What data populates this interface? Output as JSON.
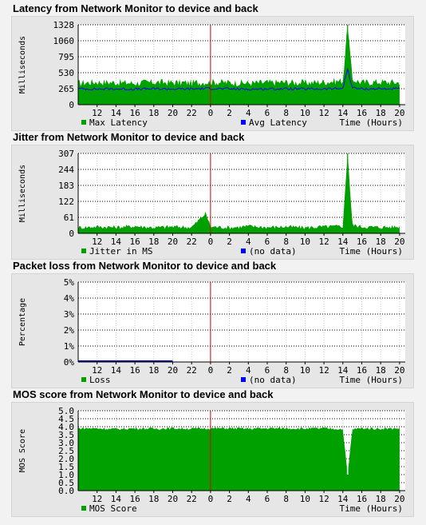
{
  "charts": [
    {
      "title": "Latency from Network Monitor to device and back",
      "ylabel": "Milliseconds",
      "xlabel": "Time (Hours)",
      "legend": [
        {
          "label": "Max Latency",
          "color": "#00a000"
        },
        {
          "label": "Avg Latency",
          "color": "#0000ff"
        }
      ]
    },
    {
      "title": "Jitter from Network Monitor to device and back",
      "ylabel": "Milliseconds",
      "xlabel": "Time (Hours)",
      "legend": [
        {
          "label": "Jitter in MS",
          "color": "#00a000"
        },
        {
          "label": "(no data)",
          "color": "#0000ff"
        }
      ]
    },
    {
      "title": "Packet loss from Network Monitor to device and back",
      "ylabel": "Percentage",
      "xlabel": "Time (Hours)",
      "legend": [
        {
          "label": "Loss",
          "color": "#00a000"
        },
        {
          "label": "(no data)",
          "color": "#0000ff"
        }
      ]
    },
    {
      "title": "MOS score from Network Monitor to device and back",
      "ylabel": "MOS Score",
      "xlabel": "Time (Hours)",
      "legend": [
        {
          "label": "MOS Score",
          "color": "#00a000"
        }
      ]
    }
  ],
  "chart_data": [
    {
      "type": "area",
      "title": "Latency from Network Monitor to device and back",
      "ylabel": "Milliseconds",
      "xlabel": "Time (Hours)",
      "ylim": [
        0,
        1328
      ],
      "yticks": [
        "1328",
        "1060",
        "795",
        "530",
        "265",
        "0"
      ],
      "xticks": [
        "12",
        "14",
        "16",
        "18",
        "20",
        "22",
        "0",
        "2",
        "4",
        "6",
        "8",
        "10",
        "12",
        "14",
        "16",
        "18",
        "20"
      ],
      "midnight_marker": "0",
      "series": [
        {
          "name": "Max Latency",
          "color": "#00a000",
          "hours": [
            "10",
            "12",
            "14",
            "16",
            "18",
            "20",
            "22",
            "0",
            "2",
            "4",
            "6",
            "8",
            "10",
            "12",
            "14",
            "14.5",
            "15",
            "16",
            "18",
            "20"
          ],
          "values": [
            360,
            380,
            370,
            360,
            375,
            370,
            365,
            380,
            370,
            360,
            370,
            375,
            365,
            380,
            400,
            1328,
            420,
            370,
            380,
            370
          ]
        },
        {
          "name": "Avg Latency",
          "color": "#0000ff",
          "hours": [
            "10",
            "12",
            "14",
            "16",
            "18",
            "20",
            "22",
            "0",
            "2",
            "4",
            "6",
            "8",
            "10",
            "12",
            "14",
            "14.5",
            "15",
            "16",
            "18",
            "20"
          ],
          "values": [
            265,
            260,
            262,
            258,
            265,
            260,
            262,
            270,
            262,
            258,
            262,
            265,
            260,
            262,
            270,
            600,
            280,
            262,
            265,
            262
          ]
        }
      ]
    },
    {
      "type": "area",
      "title": "Jitter from Network Monitor to device and back",
      "ylabel": "Milliseconds",
      "xlabel": "Time (Hours)",
      "ylim": [
        0,
        307
      ],
      "yticks": [
        "307",
        "244",
        "183",
        "122",
        "61",
        "0"
      ],
      "xticks": [
        "12",
        "14",
        "16",
        "18",
        "20",
        "22",
        "0",
        "2",
        "4",
        "6",
        "8",
        "10",
        "12",
        "14",
        "16",
        "18",
        "20"
      ],
      "midnight_marker": "0",
      "series": [
        {
          "name": "Jitter in MS",
          "color": "#00a000",
          "hours": [
            "10",
            "12",
            "14",
            "16",
            "18",
            "20",
            "22",
            "23.5",
            "0",
            "2",
            "4",
            "6",
            "8",
            "10",
            "12",
            "14",
            "14.5",
            "15",
            "16",
            "18",
            "20"
          ],
          "values": [
            15,
            18,
            16,
            20,
            15,
            18,
            16,
            70,
            18,
            15,
            20,
            16,
            18,
            15,
            18,
            20,
            307,
            25,
            18,
            16,
            18
          ]
        },
        {
          "name": "(no data)",
          "color": "#0000ff",
          "hours": [],
          "values": []
        }
      ]
    },
    {
      "type": "area",
      "title": "Packet loss from Network Monitor to device and back",
      "ylabel": "Percentage",
      "xlabel": "Time (Hours)",
      "ylim": [
        0,
        5
      ],
      "yticks": [
        "5%",
        "4%",
        "3%",
        "2%",
        "1%",
        "0%"
      ],
      "xticks": [
        "12",
        "14",
        "16",
        "18",
        "20",
        "22",
        "0",
        "2",
        "4",
        "6",
        "8",
        "10",
        "12",
        "14",
        "16",
        "18",
        "20"
      ],
      "midnight_marker": "0",
      "series": [
        {
          "name": "Loss",
          "color": "#00a000",
          "hours": [
            "10",
            "20"
          ],
          "values": [
            0,
            0
          ]
        },
        {
          "name": "(no data)",
          "color": "#0000ff",
          "hours": [],
          "values": []
        }
      ]
    },
    {
      "type": "area",
      "title": "MOS score from Network Monitor to device and back",
      "ylabel": "MOS Score",
      "xlabel": "Time (Hours)",
      "ylim": [
        0,
        5
      ],
      "yticks": [
        "5.0",
        "4.5",
        "4.0",
        "3.5",
        "3.0",
        "2.5",
        "2.0",
        "1.5",
        "1.0",
        "0.5",
        "0.0"
      ],
      "xticks": [
        "12",
        "14",
        "16",
        "18",
        "20",
        "22",
        "0",
        "2",
        "4",
        "6",
        "8",
        "10",
        "12",
        "14",
        "16",
        "18",
        "20"
      ],
      "midnight_marker": "0",
      "series": [
        {
          "name": "MOS Score",
          "color": "#00a000",
          "hours": [
            "10",
            "12",
            "14",
            "16",
            "18",
            "20",
            "22",
            "0",
            "2",
            "4",
            "6",
            "8",
            "10",
            "12",
            "14",
            "14.5",
            "15",
            "16",
            "18",
            "20"
          ],
          "values": [
            3.9,
            3.9,
            3.85,
            3.9,
            3.88,
            3.9,
            3.88,
            3.9,
            3.9,
            3.88,
            3.9,
            3.9,
            3.88,
            3.9,
            3.85,
            1.0,
            3.85,
            3.9,
            3.88,
            3.9
          ]
        }
      ]
    }
  ]
}
